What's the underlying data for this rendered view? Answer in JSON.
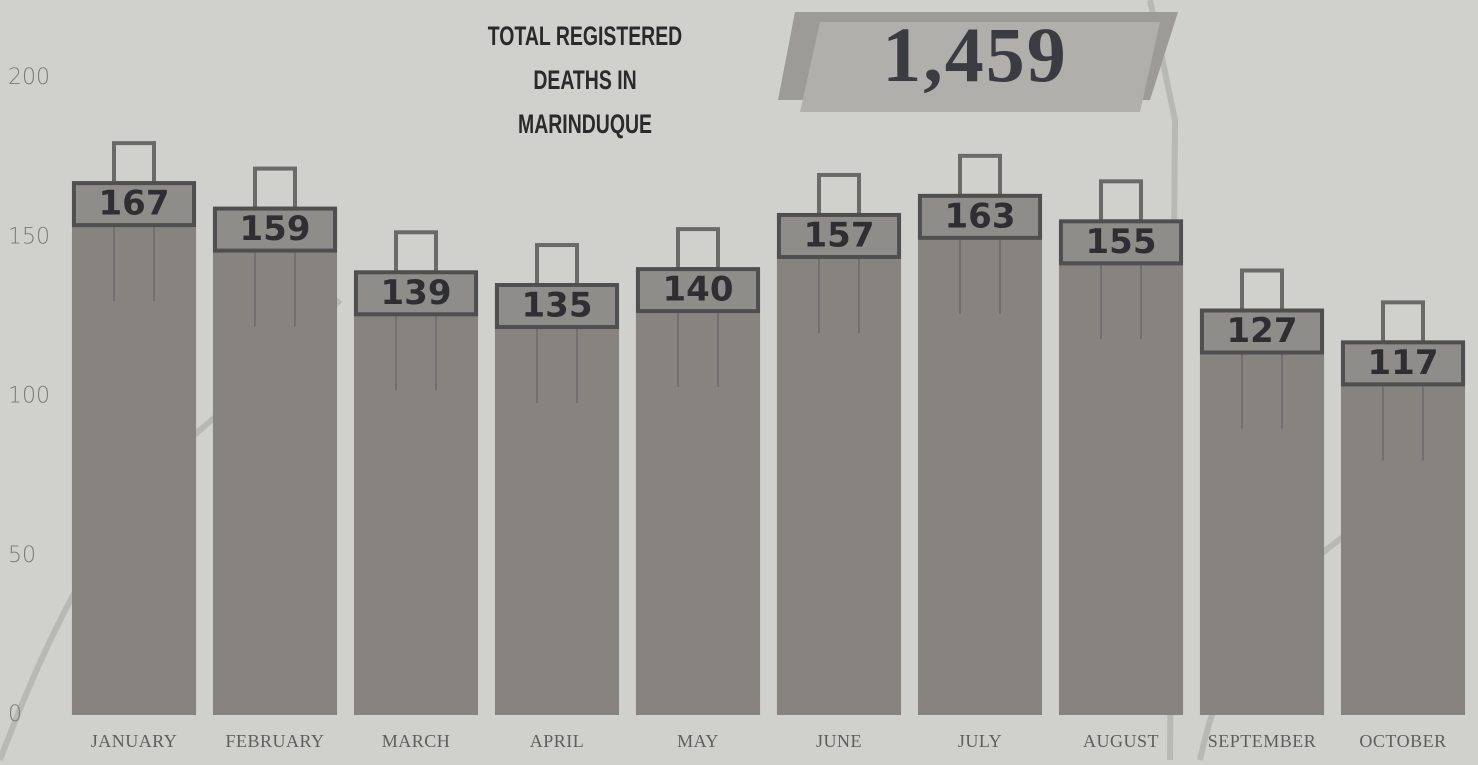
{
  "chart_data": {
    "type": "bar",
    "title": "TOTAL REGISTERED DEATHS IN MARINDUQUE",
    "total": "1,459",
    "categories": [
      "January",
      "February",
      "March",
      "April",
      "May",
      "June",
      "July",
      "August",
      "September",
      "October"
    ],
    "values": [
      167,
      159,
      139,
      135,
      140,
      157,
      163,
      155,
      127,
      117
    ],
    "color": "#878480",
    "ylim": [
      0,
      200
    ],
    "yticks": [
      0,
      50,
      100,
      150,
      200
    ],
    "grid": false
  }
}
